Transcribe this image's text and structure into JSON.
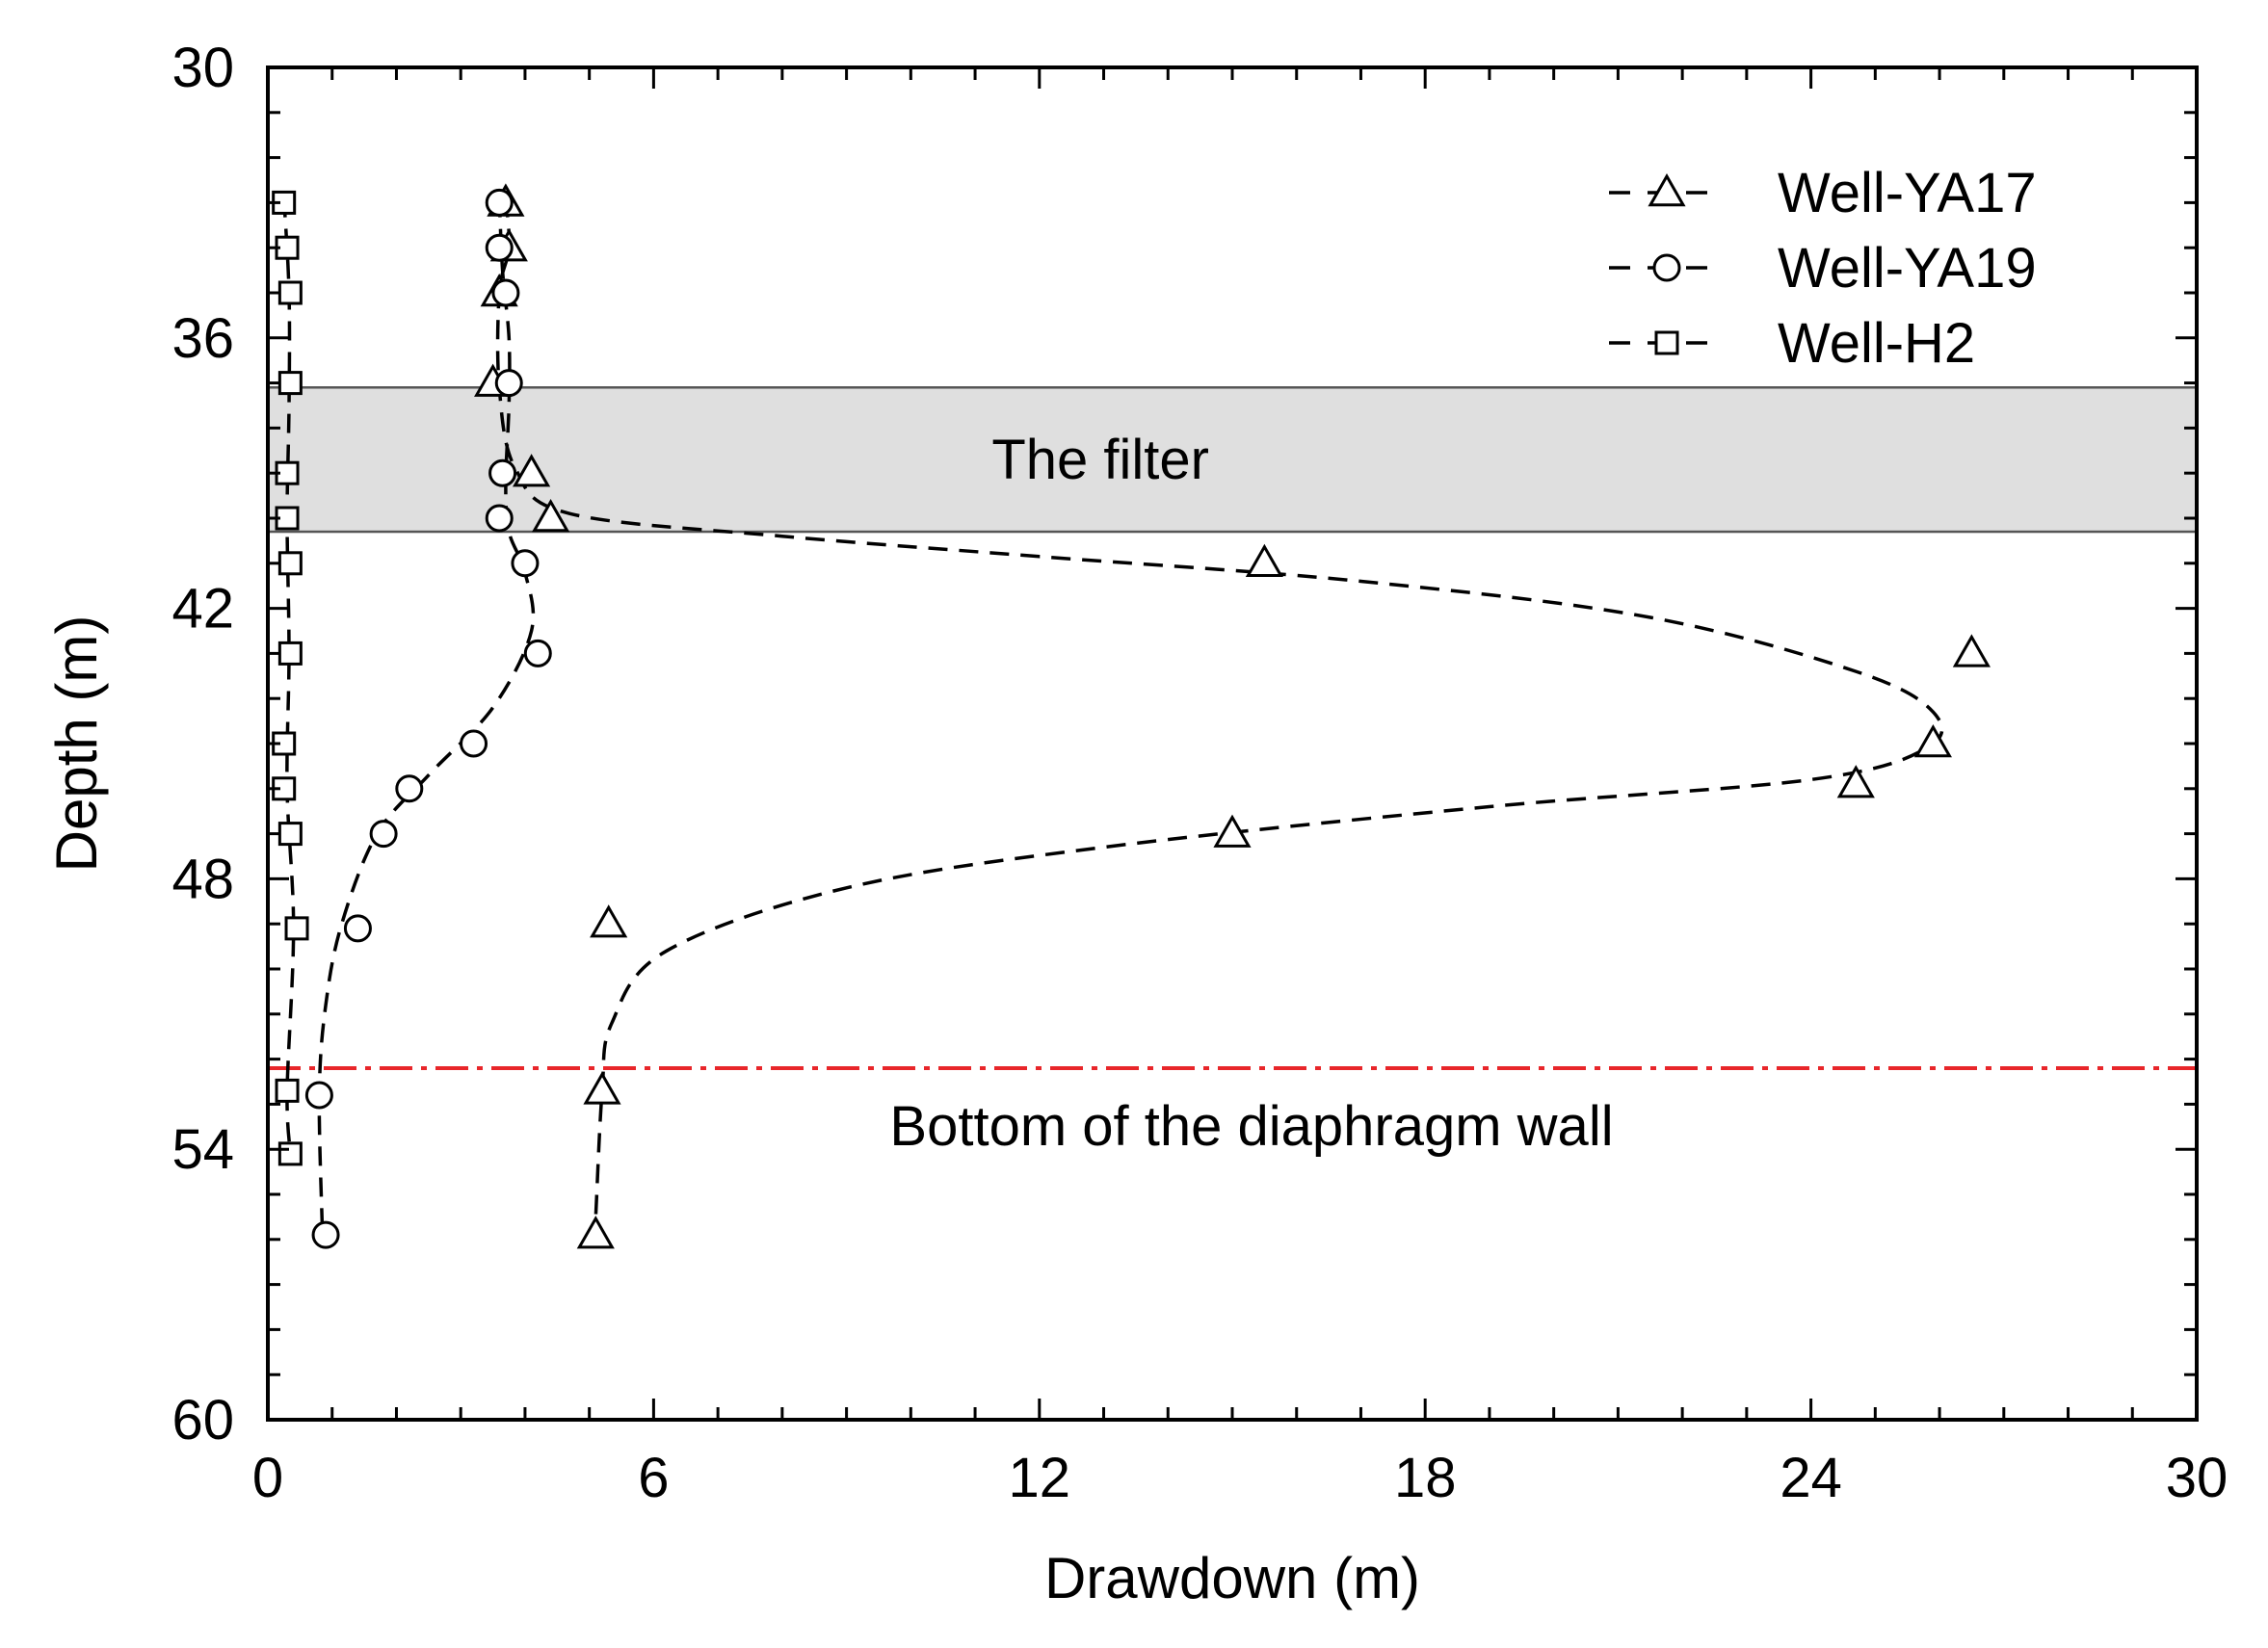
{
  "chart_data": {
    "type": "line",
    "xlabel": "Drawdown (m)",
    "ylabel": "Depth (m)",
    "xlim": [
      0,
      30
    ],
    "ylim": [
      30,
      60
    ],
    "y_inverted": true,
    "xticks": [
      "0",
      "6",
      "12",
      "18",
      "24",
      "30"
    ],
    "yticks": [
      "30",
      "36",
      "42",
      "48",
      "54",
      "60"
    ],
    "grid": false,
    "legend_position": "top-right",
    "filter_zone": {
      "label": "The filter",
      "depth_top": 37.1,
      "depth_bottom": 40.3,
      "color": "#d9d9d9"
    },
    "wall_bottom": {
      "label": "Bottom of the diaphragm wall",
      "depth": 52.2,
      "color": "#e8262a"
    },
    "series": [
      {
        "name": "Well-YA17",
        "marker": "triangle",
        "points": [
          {
            "x": 3.7,
            "y": 33.0
          },
          {
            "x": 3.75,
            "y": 34.0
          },
          {
            "x": 3.6,
            "y": 35.0
          },
          {
            "x": 3.5,
            "y": 37.0
          },
          {
            "x": 4.1,
            "y": 39.0
          },
          {
            "x": 4.4,
            "y": 40.0
          },
          {
            "x": 15.5,
            "y": 41.0
          },
          {
            "x": 26.5,
            "y": 43.0
          },
          {
            "x": 25.9,
            "y": 45.0
          },
          {
            "x": 24.7,
            "y": 45.9
          },
          {
            "x": 15.0,
            "y": 47.0
          },
          {
            "x": 5.3,
            "y": 49.0
          },
          {
            "x": 5.2,
            "y": 52.7
          },
          {
            "x": 5.1,
            "y": 55.9
          }
        ],
        "trend": [
          {
            "x": 3.7,
            "y": 32.9
          },
          {
            "x": 3.75,
            "y": 34.0
          },
          {
            "x": 3.6,
            "y": 35.0
          },
          {
            "x": 3.6,
            "y": 37.1
          },
          {
            "x": 3.85,
            "y": 38.9
          },
          {
            "x": 4.7,
            "y": 39.9
          },
          {
            "x": 8.0,
            "y": 40.4
          },
          {
            "x": 12.0,
            "y": 40.85
          },
          {
            "x": 17.0,
            "y": 41.4
          },
          {
            "x": 21.5,
            "y": 42.2
          },
          {
            "x": 24.7,
            "y": 43.4
          },
          {
            "x": 25.9,
            "y": 44.3
          },
          {
            "x": 25.8,
            "y": 45.1
          },
          {
            "x": 24.0,
            "y": 45.8
          },
          {
            "x": 19.0,
            "y": 46.4
          },
          {
            "x": 13.0,
            "y": 47.3
          },
          {
            "x": 9.0,
            "y": 48.2
          },
          {
            "x": 6.2,
            "y": 49.6
          },
          {
            "x": 5.35,
            "y": 51.2
          },
          {
            "x": 5.2,
            "y": 52.7
          },
          {
            "x": 5.1,
            "y": 55.5
          }
        ]
      },
      {
        "name": "Well-YA19",
        "marker": "circle",
        "points": [
          {
            "x": 3.6,
            "y": 33.0
          },
          {
            "x": 3.6,
            "y": 34.0
          },
          {
            "x": 3.7,
            "y": 35.0
          },
          {
            "x": 3.75,
            "y": 37.0
          },
          {
            "x": 3.65,
            "y": 39.0
          },
          {
            "x": 3.6,
            "y": 40.0
          },
          {
            "x": 4.0,
            "y": 41.0
          },
          {
            "x": 4.2,
            "y": 43.0
          },
          {
            "x": 3.2,
            "y": 45.0
          },
          {
            "x": 2.2,
            "y": 46.0
          },
          {
            "x": 1.8,
            "y": 47.0
          },
          {
            "x": 1.4,
            "y": 49.1
          },
          {
            "x": 0.8,
            "y": 52.8
          },
          {
            "x": 0.9,
            "y": 55.9
          }
        ],
        "trend": [
          {
            "x": 3.6,
            "y": 32.9
          },
          {
            "x": 3.65,
            "y": 34.5
          },
          {
            "x": 3.75,
            "y": 36.0
          },
          {
            "x": 3.75,
            "y": 37.5
          },
          {
            "x": 3.7,
            "y": 39.2
          },
          {
            "x": 3.75,
            "y": 40.3
          },
          {
            "x": 4.0,
            "y": 41.2
          },
          {
            "x": 4.1,
            "y": 42.5
          },
          {
            "x": 3.5,
            "y": 44.2
          },
          {
            "x": 2.5,
            "y": 45.7
          },
          {
            "x": 1.7,
            "y": 47.0
          },
          {
            "x": 1.15,
            "y": 49.0
          },
          {
            "x": 0.9,
            "y": 50.8
          },
          {
            "x": 0.8,
            "y": 52.8
          },
          {
            "x": 0.85,
            "y": 55.9
          }
        ]
      },
      {
        "name": "Well-H2",
        "marker": "square",
        "points": [
          {
            "x": 0.25,
            "y": 33.0
          },
          {
            "x": 0.3,
            "y": 34.0
          },
          {
            "x": 0.35,
            "y": 35.0
          },
          {
            "x": 0.35,
            "y": 37.0
          },
          {
            "x": 0.3,
            "y": 39.0
          },
          {
            "x": 0.3,
            "y": 40.0
          },
          {
            "x": 0.35,
            "y": 41.0
          },
          {
            "x": 0.35,
            "y": 43.0
          },
          {
            "x": 0.25,
            "y": 45.0
          },
          {
            "x": 0.25,
            "y": 46.0
          },
          {
            "x": 0.35,
            "y": 47.0
          },
          {
            "x": 0.45,
            "y": 49.1
          },
          {
            "x": 0.3,
            "y": 52.7
          },
          {
            "x": 0.35,
            "y": 54.1
          }
        ],
        "trend": [
          {
            "x": 0.25,
            "y": 32.9
          },
          {
            "x": 0.33,
            "y": 35.0
          },
          {
            "x": 0.33,
            "y": 37.5
          },
          {
            "x": 0.3,
            "y": 40.0
          },
          {
            "x": 0.33,
            "y": 43.0
          },
          {
            "x": 0.3,
            "y": 46.0
          },
          {
            "x": 0.4,
            "y": 49.1
          },
          {
            "x": 0.3,
            "y": 52.7
          },
          {
            "x": 0.35,
            "y": 54.1
          }
        ]
      }
    ]
  }
}
